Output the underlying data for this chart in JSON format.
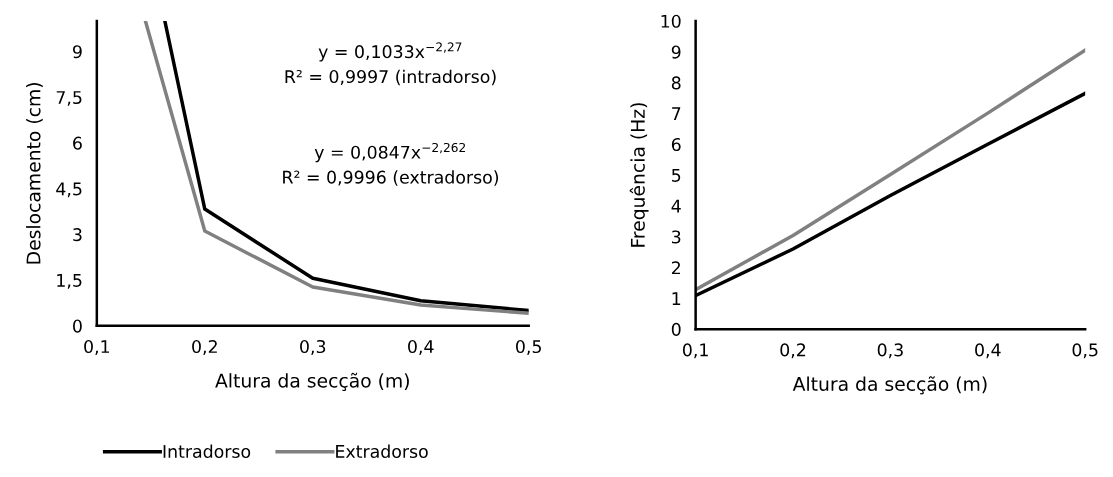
{
  "chart_data": [
    {
      "type": "line",
      "xlabel": "Altura da secção (m)",
      "ylabel": "Deslocamento (cm)",
      "xlim": [
        0.1,
        0.5
      ],
      "xticks": [
        {
          "value": 0.1,
          "label": "0,1"
        },
        {
          "value": 0.2,
          "label": "0,2"
        },
        {
          "value": 0.3,
          "label": "0,3"
        },
        {
          "value": 0.4,
          "label": "0,4"
        },
        {
          "value": 0.5,
          "label": "0,5"
        }
      ],
      "ylim": [
        0,
        10
      ],
      "yticks": [
        0,
        {
          "value": 1.5,
          "label": "1,5"
        },
        3,
        {
          "value": 4.5,
          "label": "4,5"
        },
        6,
        {
          "value": 7.5,
          "label": "7,5"
        },
        9
      ],
      "grid": false,
      "legend": "bottom",
      "annotations": [
        "y = 0,1033x$^{−2,27}$\nR² = 0,9997 (intradorso)",
        "y = 0,0847x$^{−2,262}$\nR² = 0,9996 (extradorso)"
      ],
      "series": [
        {
          "name": "Intradorso",
          "color": "#000000",
          "x": [
            0.163,
            0.2,
            0.3,
            0.4,
            0.5
          ],
          "values": [
            10,
            3.83,
            1.56,
            0.82,
            0.5
          ]
        },
        {
          "name": "Extradorso",
          "color": "#808080",
          "x": [
            0.145,
            0.2,
            0.3,
            0.4,
            0.5
          ],
          "values": [
            10,
            3.11,
            1.27,
            0.68,
            0.41
          ]
        }
      ]
    },
    {
      "type": "line",
      "xlabel": "Altura da secção (m)",
      "ylabel": "Frequência (Hz)",
      "xlim": [
        0.1,
        0.5
      ],
      "xticks": [
        {
          "value": 0.1,
          "label": "0,1"
        },
        {
          "value": 0.2,
          "label": "0,2"
        },
        {
          "value": 0.3,
          "label": "0,3"
        },
        {
          "value": 0.4,
          "label": "0,4"
        },
        {
          "value": 0.5,
          "label": "0,5"
        }
      ],
      "ylim": [
        0,
        10
      ],
      "yticks": [
        0,
        1,
        2,
        3,
        4,
        5,
        6,
        7,
        8,
        9,
        10
      ],
      "grid": false,
      "x": [
        0.1,
        0.2,
        0.3,
        0.4,
        0.5
      ],
      "series": [
        {
          "color": "#000000",
          "values": [
            1.09,
            2.6,
            4.34,
            6.0,
            7.65
          ]
        },
        {
          "color": "#808080",
          "values": [
            1.28,
            3.04,
            5.02,
            7.01,
            9.05
          ]
        }
      ]
    }
  ]
}
